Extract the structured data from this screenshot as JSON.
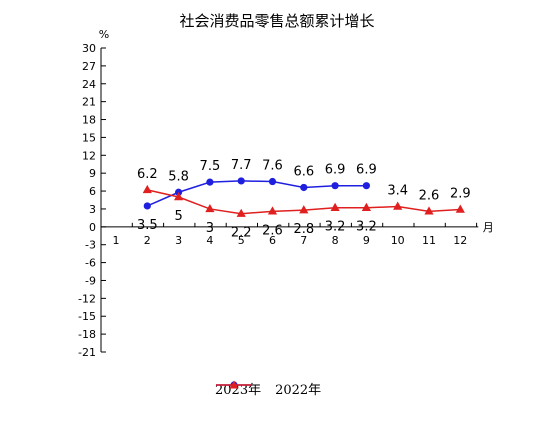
{
  "chart_data": {
    "type": "line",
    "title": "社会消费品零售总额累计增长",
    "ylabel": "%",
    "xlabel": "月",
    "categories": [
      "1",
      "2",
      "3",
      "4",
      "5",
      "6",
      "7",
      "8",
      "9",
      "10",
      "11",
      "12"
    ],
    "ylim": [
      -21,
      30
    ],
    "yticks": [
      30,
      27,
      24,
      21,
      18,
      15,
      12,
      9,
      6,
      3,
      0,
      -3,
      -6,
      -9,
      -12,
      -15,
      -18,
      -21
    ],
    "ytick_labels": [
      "30",
      "27",
      "24",
      "21",
      "18",
      "15",
      "12",
      "9",
      "6",
      "3",
      "0",
      "-3",
      "-6",
      "-9",
      "-12",
      "-15",
      "-18",
      "-21"
    ],
    "grid": false,
    "legend_position": "bottom",
    "series": [
      {
        "name": "2023年",
        "color": "#1f1fe0",
        "marker": "circle",
        "values": [
          null,
          3.5,
          5.8,
          7.5,
          7.7,
          7.6,
          6.6,
          6.9,
          6.9,
          null,
          null,
          null
        ],
        "labels": [
          null,
          "3.5",
          "5.8",
          "7.5",
          "7.7",
          "7.6",
          "6.6",
          "6.9",
          "6.9",
          null,
          null,
          null
        ]
      },
      {
        "name": "2022年",
        "color": "#e01f1f",
        "marker": "triangle",
        "values": [
          null,
          6.2,
          5,
          3,
          2.2,
          2.6,
          2.8,
          3.2,
          3.2,
          3.4,
          2.6,
          2.9
        ],
        "labels": [
          null,
          "6.2",
          "5",
          "3",
          "2.2",
          "2.6",
          "2.8",
          "3.2",
          "3.2",
          "3.4",
          "2.6",
          "2.9"
        ]
      }
    ]
  }
}
